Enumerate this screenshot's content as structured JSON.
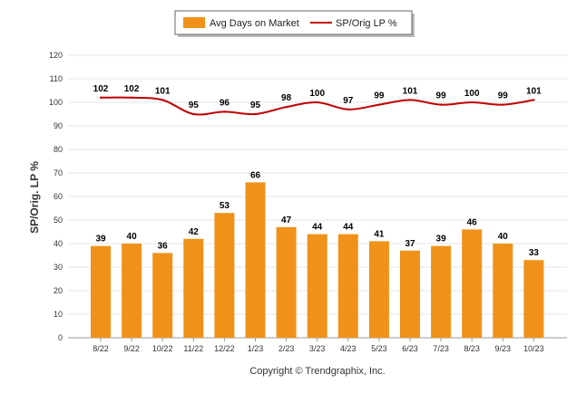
{
  "chart_data": {
    "type": "bar",
    "categories": [
      "8/22",
      "9/22",
      "10/22",
      "11/22",
      "12/22",
      "1/23",
      "2/23",
      "3/23",
      "4/23",
      "5/23",
      "6/23",
      "7/23",
      "8/23",
      "9/23",
      "10/23"
    ],
    "series": [
      {
        "name": "Avg Days on Market",
        "type": "bar",
        "color": "#f0921a",
        "values": [
          39,
          40,
          36,
          42,
          53,
          66,
          47,
          44,
          44,
          41,
          37,
          39,
          46,
          40,
          33
        ]
      },
      {
        "name": "SP/Orig LP %",
        "type": "line",
        "color": "#c00000",
        "values": [
          102,
          102,
          101,
          95,
          96,
          95,
          98,
          100,
          97,
          99,
          101,
          99,
          100,
          99,
          101
        ]
      }
    ],
    "ylabel": "SP/Orig. LP %",
    "ylim": [
      0,
      120
    ],
    "yticks": [
      0,
      10,
      20,
      30,
      40,
      50,
      60,
      70,
      80,
      90,
      100,
      110,
      120
    ],
    "grid": true,
    "legend_position": "top-center"
  },
  "footer": {
    "copyright": "Copyright © Trendgraphix, Inc."
  }
}
